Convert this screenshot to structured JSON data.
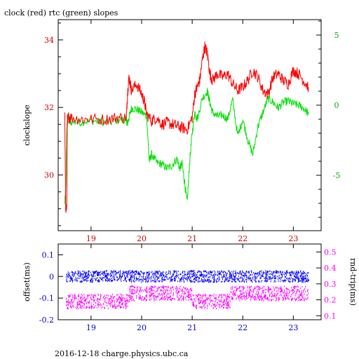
{
  "title": "clock (red) rtc (green) slopes",
  "footer": "2016-12-18 charge.physics.ubc.ca",
  "colors": {
    "clock": "#ff0000",
    "rtc": "#00e000",
    "offset": "#0000ff",
    "rtrip": "#ff00ff",
    "axis_red": "#cc0000",
    "axis_green": "#00b000",
    "axis_blue": "#0000cc",
    "axis_magenta": "#ff00ff"
  },
  "chart_data": [
    {
      "type": "line",
      "title": "clock (red) rtc (green) slopes",
      "ylabel": "clockslope",
      "y2label": "",
      "xlim": [
        18.35,
        23.55
      ],
      "ylim": [
        28.35,
        34.6
      ],
      "y2lim": [
        -8.95,
        6.1
      ],
      "xticks": [
        19,
        20,
        21,
        22,
        23
      ],
      "yticks": [
        30,
        32,
        34
      ],
      "y2ticks": [
        -5,
        0,
        5
      ],
      "series": [
        {
          "axis": "left",
          "x": [
            18.48,
            18.5,
            18.52,
            18.53,
            18.55,
            18.6,
            18.8,
            19.0,
            19.3,
            19.5,
            19.7,
            19.72,
            19.75,
            19.8,
            19.9,
            20.0,
            20.05,
            20.1,
            20.2,
            20.3,
            20.4,
            20.5,
            20.6,
            20.7,
            20.8,
            20.9,
            21.0,
            21.05,
            21.1,
            21.15,
            21.2,
            21.25,
            21.3,
            21.35,
            21.4,
            21.5,
            21.6,
            21.7,
            21.8,
            21.9,
            22.0,
            22.1,
            22.2,
            22.3,
            22.4,
            22.5,
            22.6,
            22.7,
            22.8,
            22.9,
            23.0,
            23.1,
            23.2,
            23.3
          ],
          "y": [
            31.7,
            28.8,
            29.2,
            31.6,
            31.7,
            31.7,
            31.65,
            31.65,
            31.65,
            31.7,
            31.7,
            32.4,
            32.9,
            32.5,
            32.7,
            32.4,
            32.2,
            31.8,
            31.6,
            31.7,
            31.5,
            31.55,
            31.5,
            31.45,
            31.4,
            31.35,
            31.7,
            32.4,
            32.6,
            32.8,
            33.4,
            33.8,
            33.6,
            33.0,
            32.8,
            33.0,
            32.9,
            33.0,
            32.7,
            32.5,
            32.6,
            32.8,
            33.1,
            32.9,
            32.5,
            32.4,
            32.9,
            33.0,
            32.8,
            32.7,
            33.1,
            33.0,
            32.8,
            32.6
          ]
        },
        {
          "axis": "right",
          "x": [
            18.48,
            18.5,
            18.52,
            18.55,
            18.6,
            18.8,
            19.0,
            19.2,
            19.4,
            19.6,
            19.7,
            19.72,
            19.75,
            19.8,
            19.9,
            20.0,
            20.1,
            20.15,
            20.2,
            20.3,
            20.4,
            20.5,
            20.6,
            20.7,
            20.75,
            20.8,
            20.85,
            20.9,
            20.95,
            21.0,
            21.05,
            21.1,
            21.2,
            21.3,
            21.35,
            21.4,
            21.5,
            21.6,
            21.7,
            21.8,
            21.9,
            22.0,
            22.1,
            22.2,
            22.3,
            22.4,
            22.5,
            22.6,
            22.7,
            22.8,
            22.9,
            23.0,
            23.1,
            23.2,
            23.3
          ],
          "y": [
            -7.0,
            -6.0,
            -1.5,
            -0.8,
            -1.2,
            -1.2,
            -1.1,
            -1.2,
            -1.2,
            -1.0,
            -1.1,
            -1.3,
            -0.9,
            -0.2,
            -0.3,
            -0.5,
            -0.8,
            -4.0,
            -3.5,
            -4.1,
            -4.2,
            -4.5,
            -4.3,
            -3.8,
            -4.5,
            -4.2,
            -5.5,
            -7.0,
            -4.0,
            -2.0,
            -0.5,
            -1.0,
            0.5,
            1.0,
            0.2,
            -0.5,
            -0.8,
            -0.7,
            -1.0,
            0.4,
            -2.2,
            -1.0,
            -2.5,
            -3.5,
            -1.5,
            -0.5,
            0.5,
            0.2,
            -0.2,
            0.2,
            0.3,
            0.1,
            0.0,
            -0.2,
            -0.6
          ]
        }
      ]
    },
    {
      "type": "scatter",
      "ylabel": "offset(ms)",
      "y2label": "rnd-trip(ms)",
      "xlim": [
        18.35,
        23.55
      ],
      "ylim": [
        -0.2,
        0.15
      ],
      "y2lim": [
        0.075,
        0.55
      ],
      "xticks": [
        19,
        20,
        21,
        22,
        23
      ],
      "yticks": [
        -0.2,
        -0.1,
        0,
        0.1
      ],
      "y2ticks": [
        0.1,
        0.2,
        0.3,
        0.4,
        0.5
      ],
      "series": [
        {
          "axis": "left",
          "x": [
            18.5,
            23.3
          ],
          "y_band": [
            -0.015,
            0.025
          ],
          "y_center": 0.0
        },
        {
          "axis": "right",
          "segments": [
            {
              "x": [
                18.5,
                19.75
              ],
              "y": 0.19
            },
            {
              "x": [
                19.75,
                21.0
              ],
              "y": 0.24
            },
            {
              "x": [
                21.0,
                21.75
              ],
              "y": 0.19
            },
            {
              "x": [
                21.75,
                23.3
              ],
              "y": 0.24
            }
          ]
        }
      ]
    }
  ]
}
